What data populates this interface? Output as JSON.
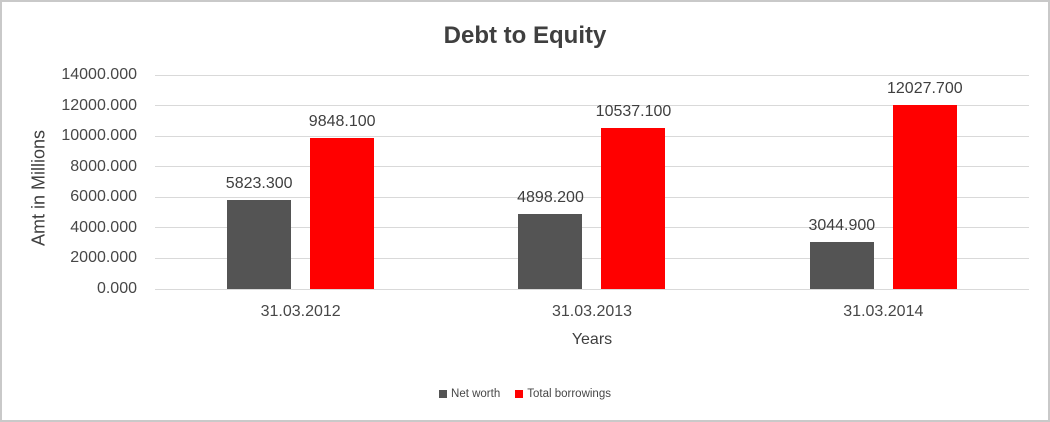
{
  "frame": {
    "background": "#ffffff",
    "border_color": "#c9c9c9"
  },
  "chart_data": {
    "type": "bar",
    "title": "Debt to Equity",
    "xlabel": "Years",
    "ylabel": "Amt in Millions",
    "categories": [
      "31.03.2012",
      "31.03.2013",
      "31.03.2014"
    ],
    "series": [
      {
        "name": "Net worth",
        "slug": "net-worth",
        "color": "#545454",
        "values": [
          5823.3,
          4898.2,
          3044.9
        ],
        "labels": [
          "5823.300",
          "4898.200",
          "3044.900"
        ]
      },
      {
        "name": "Total borrowings",
        "slug": "total-borrowings",
        "color": "#ff0000",
        "values": [
          9848.1,
          10537.1,
          12027.7
        ],
        "labels": [
          "9848.100",
          "10537.100",
          "12027.700"
        ]
      }
    ],
    "ylim": [
      0,
      14000
    ],
    "y_tick_step": 2000,
    "y_ticks": [
      "0.000",
      "2000.000",
      "4000.000",
      "6000.000",
      "8000.000",
      "10000.000",
      "12000.000",
      "14000.000"
    ],
    "grid": true,
    "gridline_color": "#d9d9d9",
    "legend_position": "bottom",
    "text_color": "#474747",
    "title_color": "#3f3f3f"
  }
}
